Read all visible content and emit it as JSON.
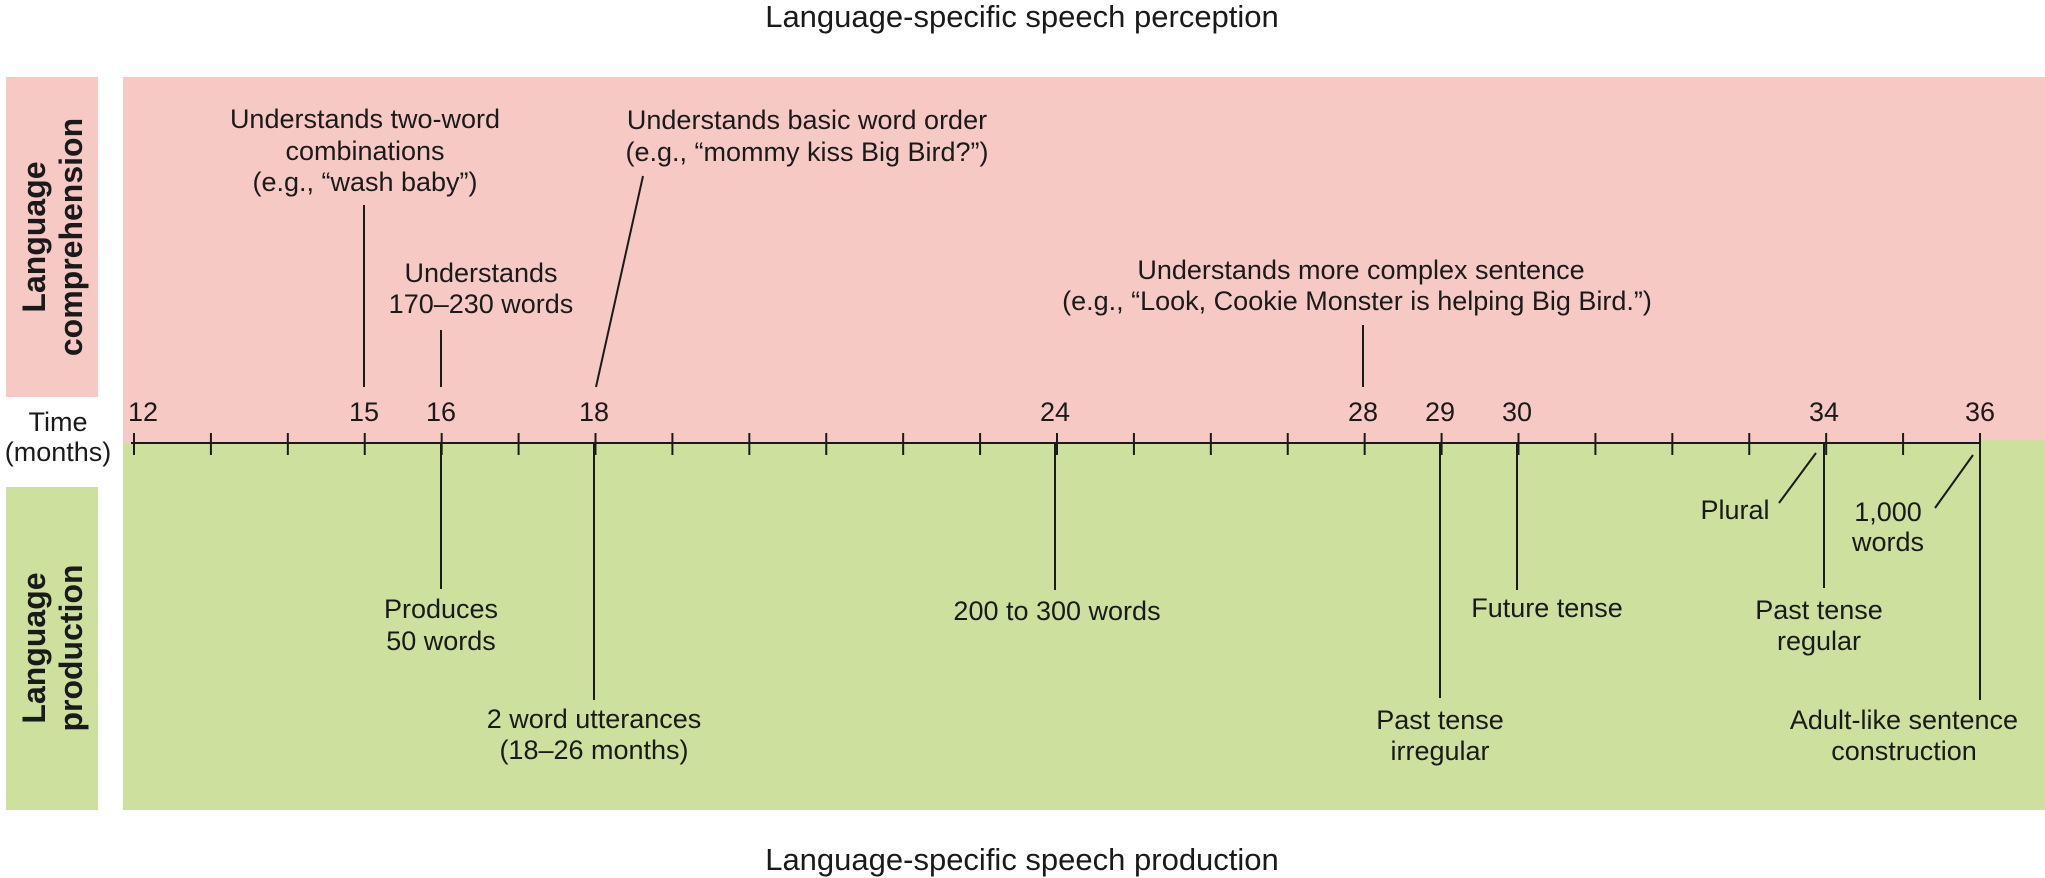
{
  "titles": {
    "top": "Language-specific speech perception",
    "bottom": "Language-specific speech production"
  },
  "side_labels": {
    "comprehension": [
      "Language",
      "comprehension"
    ],
    "production": [
      "Language",
      "production"
    ]
  },
  "axis": {
    "label": [
      "Time",
      "(months)"
    ],
    "range": [
      12,
      36
    ],
    "minor_ticks": [
      12,
      13,
      14,
      15,
      16,
      17,
      18,
      19,
      20,
      21,
      22,
      23,
      24,
      25,
      26,
      27,
      28,
      29,
      30,
      31,
      32,
      33,
      34,
      35,
      36
    ],
    "labeled_ticks": [
      "12",
      "15",
      "16",
      "18",
      "24",
      "28",
      "29",
      "30",
      "34",
      "36"
    ]
  },
  "comprehension_events": [
    {
      "month": 15,
      "lines": [
        "Understands two-word",
        "combinations",
        "(e.g., “wash baby”)"
      ]
    },
    {
      "month": 16,
      "lines": [
        "Understands",
        "170–230 words"
      ]
    },
    {
      "month": 18,
      "lines": [
        "Understands basic word order",
        "(e.g., “mommy kiss Big Bird?”)"
      ]
    },
    {
      "month": 28,
      "lines": [
        "Understands more complex sentence",
        "(e.g., “Look, Cookie Monster is helping Big Bird.”)"
      ]
    }
  ],
  "production_events": [
    {
      "month": 16,
      "lines": [
        "Produces",
        "50 words"
      ]
    },
    {
      "month": 18,
      "lines": [
        "2 word utterances",
        "(18–26 months)"
      ]
    },
    {
      "month": 24,
      "lines": [
        "200 to 300 words"
      ]
    },
    {
      "month": 29,
      "lines": [
        "Past tense",
        "irregular"
      ]
    },
    {
      "month": 30,
      "lines": [
        "Future tense"
      ]
    },
    {
      "month": 34,
      "lines": [
        "Plural"
      ]
    },
    {
      "month": 34,
      "lines": [
        "Past tense",
        "regular"
      ]
    },
    {
      "month": 36,
      "lines": [
        "1,000",
        "words"
      ]
    },
    {
      "month": 36,
      "lines": [
        "Adult-like sentence",
        "construction"
      ]
    }
  ],
  "colors": {
    "comprehension_band": "#f7c9c5",
    "production_band": "#cde09e",
    "line": "#1a1a1a"
  }
}
